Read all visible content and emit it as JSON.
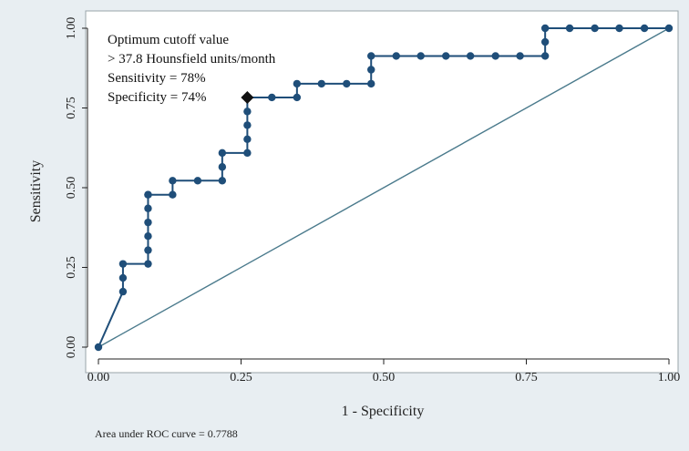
{
  "chart_data": {
    "type": "line",
    "title": "",
    "xlabel": "1 - Specificity",
    "ylabel": "Sensitivity",
    "xlim": [
      0,
      1
    ],
    "ylim": [
      0,
      1
    ],
    "xticks": [
      "0.00",
      "0.25",
      "0.50",
      "0.75",
      "1.00"
    ],
    "yticks": [
      "0.00",
      "0.25",
      "0.50",
      "0.75",
      "1.00"
    ],
    "grid": false,
    "legend": "none",
    "series": [
      {
        "color": "#1f4e79",
        "marker": "circle",
        "x": [
          0.0,
          0.043,
          0.043,
          0.043,
          0.087,
          0.087,
          0.087,
          0.087,
          0.087,
          0.087,
          0.087,
          0.13,
          0.13,
          0.174,
          0.217,
          0.217,
          0.217,
          0.261,
          0.261,
          0.261,
          0.261,
          0.261,
          0.304,
          0.348,
          0.348,
          0.391,
          0.435,
          0.478,
          0.478,
          0.478,
          0.522,
          0.565,
          0.609,
          0.652,
          0.696,
          0.739,
          0.783,
          0.783,
          0.783,
          0.826,
          0.87,
          0.913,
          0.957,
          1.0
        ],
        "y": [
          0.0,
          0.174,
          0.217,
          0.261,
          0.261,
          0.304,
          0.348,
          0.391,
          0.435,
          0.478,
          0.478,
          0.478,
          0.522,
          0.522,
          0.522,
          0.565,
          0.609,
          0.609,
          0.652,
          0.696,
          0.739,
          0.783,
          0.783,
          0.783,
          0.826,
          0.826,
          0.826,
          0.826,
          0.87,
          0.913,
          0.913,
          0.913,
          0.913,
          0.913,
          0.913,
          0.913,
          0.913,
          0.957,
          1.0,
          1.0,
          1.0,
          1.0,
          1.0,
          1.0
        ]
      },
      {
        "color": "#4a7a8c",
        "marker": "none",
        "x": [
          0,
          1
        ],
        "y": [
          0,
          1
        ]
      }
    ],
    "optimum_point": {
      "x": 0.261,
      "y": 0.783,
      "marker": "diamond",
      "color": "#111111"
    },
    "annotations": [
      "Optimum cutoff value",
      "> 37.8 Hounsfield units/month",
      "Sensitivity = 78%",
      "Specificity = 74%"
    ],
    "footnote": "Area under ROC curve = 0.7788"
  }
}
